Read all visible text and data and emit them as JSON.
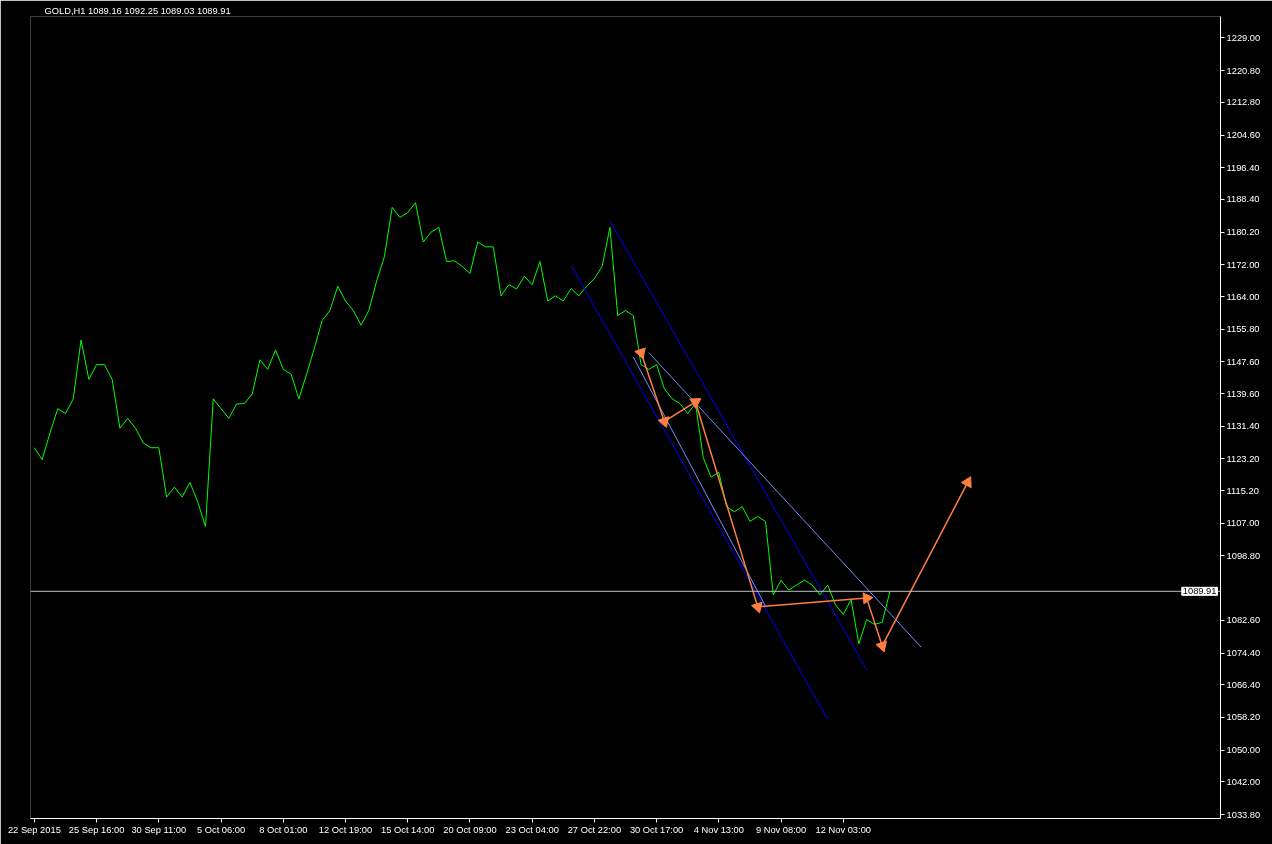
{
  "chart_data": {
    "type": "line",
    "title": "GOLD,H1  1089.16 1092.25 1089.03 1089.91",
    "categories": [
      "22 Sep 2015",
      null,
      null,
      null,
      null,
      null,
      null,
      null,
      "25 Sep 16:00",
      null,
      null,
      null,
      null,
      null,
      null,
      null,
      "30 Sep 11:00",
      null,
      null,
      null,
      null,
      null,
      null,
      null,
      "5 Oct 06:00",
      null,
      null,
      null,
      null,
      null,
      null,
      null,
      "8 Oct 01:00",
      null,
      null,
      null,
      null,
      null,
      null,
      null,
      "12 Oct 19:00",
      null,
      null,
      null,
      null,
      null,
      null,
      null,
      "15 Oct 14:00",
      null,
      null,
      null,
      null,
      null,
      null,
      null,
      "20 Oct 09:00",
      null,
      null,
      null,
      null,
      null,
      null,
      null,
      "23 Oct 04:00",
      null,
      null,
      null,
      null,
      null,
      null,
      null,
      "27 Oct 22:00",
      null,
      null,
      null,
      null,
      null,
      null,
      null,
      "30 Oct 17:00",
      null,
      null,
      null,
      null,
      null,
      null,
      null,
      "4 Nov 13:00",
      null,
      null,
      null,
      null,
      null,
      null,
      null,
      "9 Nov 08:00",
      null,
      null,
      null,
      null,
      null,
      null,
      null,
      "12 Nov 03:00",
      null,
      null,
      null,
      null,
      null,
      null,
      null,
      null,
      null,
      null,
      null,
      null,
      null,
      null,
      null,
      null,
      null,
      null,
      null,
      null,
      null,
      null,
      null,
      null,
      null,
      null,
      null,
      null,
      null,
      null,
      null,
      null,
      null,
      null,
      null,
      null,
      null,
      null,
      null,
      null,
      null,
      null,
      null,
      null,
      null,
      null,
      null,
      null
    ],
    "ylim": [
      1032.8,
      1234.4
    ],
    "yticks": [
      {
        "value": 1229,
        "label": "1229.00"
      },
      {
        "value": 1220.8,
        "label": "1220.80"
      },
      {
        "value": 1212.8,
        "label": "1212.80"
      },
      {
        "value": 1204.6,
        "label": "1204.60"
      },
      {
        "value": 1196.4,
        "label": "1196.40"
      },
      {
        "value": 1188.4,
        "label": "1188.40"
      },
      {
        "value": 1180.2,
        "label": "1180.20"
      },
      {
        "value": 1172,
        "label": "1172.00"
      },
      {
        "value": 1164,
        "label": "1164.00"
      },
      {
        "value": 1155.8,
        "label": "1155.80"
      },
      {
        "value": 1147.6,
        "label": "1147.60"
      },
      {
        "value": 1139.6,
        "label": "1139.60"
      },
      {
        "value": 1131.4,
        "label": "1131.40"
      },
      {
        "value": 1123.2,
        "label": "1123.20"
      },
      {
        "value": 1115.2,
        "label": "1115.20"
      },
      {
        "value": 1107,
        "label": "1107.00"
      },
      {
        "value": 1098.8,
        "label": "1098.80"
      },
      {
        "value": 1082.6,
        "label": "1082.60"
      },
      {
        "value": 1074.4,
        "label": "1074.40"
      },
      {
        "value": 1066.4,
        "label": "1066.40"
      },
      {
        "value": 1058.2,
        "label": "1058.20"
      },
      {
        "value": 1050,
        "label": "1050.00"
      },
      {
        "value": 1042,
        "label": "1042.00"
      },
      {
        "value": 1033.8,
        "label": "1033.80"
      }
    ],
    "grid": false,
    "ref_lines": [
      {
        "axis": "y",
        "value": 1089.91,
        "label": "1089.91",
        "color": "#c0c0c0"
      }
    ],
    "series": [
      {
        "color": "#00ff00",
        "values": [
          1126.0,
          1123.0,
          1129.7,
          1135.8,
          1134.6,
          1138.3,
          1153.1,
          1143.2,
          1146.9,
          1146.9,
          1143.2,
          1130.9,
          1133.4,
          1130.9,
          1127.2,
          1126.0,
          1126.0,
          1113.6,
          1116.1,
          1113.6,
          1117.3,
          1112.4,
          1106.2,
          1138.3,
          1135.8,
          1133.4,
          1137.0,
          1137.1,
          1139.5,
          1148.1,
          1145.7,
          1150.6,
          1145.7,
          1144.5,
          1138.3,
          1144.5,
          1151.0,
          1158.0,
          1160.5,
          1166.6,
          1162.9,
          1160.5,
          1156.8,
          1160.5,
          1167.9,
          1174.0,
          1186.4,
          1183.9,
          1185.1,
          1187.6,
          1177.7,
          1180.2,
          1181.4,
          1172.8,
          1173.0,
          1171.6,
          1169.8,
          1177.7,
          1176.5,
          1176.5,
          1164.2,
          1167.0,
          1165.9,
          1169.1,
          1167.0,
          1172.8,
          1162.9,
          1164.2,
          1162.9,
          1166.0,
          1164.2,
          1166.6,
          1168.5,
          1171.6,
          1181.4,
          1159.2,
          1160.5,
          1159.2,
          1146.9,
          1145.7,
          1146.9,
          1140.8,
          1138.3,
          1137.1,
          1134.6,
          1137.1,
          1123.5,
          1118.6,
          1119.8,
          1111.2,
          1109.9,
          1111.2,
          1107.5,
          1108.7,
          1107.5,
          1089.0,
          1092.7,
          1090.2,
          1091.5,
          1092.7,
          1091.5,
          1089.0,
          1091.5,
          1086.5,
          1084.1,
          1087.8,
          1076.7,
          1082.8,
          1081.6,
          1082.1,
          1089.9,
          null,
          null,
          null,
          null,
          null,
          null,
          null,
          null,
          null,
          null,
          null,
          null,
          null,
          null,
          null,
          null,
          null,
          null,
          null,
          null,
          null,
          null,
          null,
          null,
          null,
          null,
          null,
          null,
          null,
          null,
          null,
          null,
          null,
          null,
          null,
          null,
          null,
          null,
          null,
          null,
          null,
          null
        ]
      },
      {
        "color": "#0000ff",
        "values": [
          null,
          null,
          null,
          null,
          null,
          null,
          null,
          null,
          null,
          null,
          null,
          null,
          null,
          null,
          null,
          null,
          null,
          null,
          null,
          null,
          null,
          null,
          null,
          null,
          null,
          null,
          null,
          null,
          null,
          null,
          null,
          null,
          null,
          null,
          null,
          null,
          null,
          null,
          null,
          null,
          null,
          null,
          null,
          null,
          null,
          null,
          null,
          null,
          null,
          null,
          null,
          null,
          null,
          null,
          null,
          null,
          null,
          null,
          null,
          null,
          null,
          null,
          null,
          null,
          null,
          null,
          null,
          null,
          null,
          1171.9,
          null,
          null,
          null,
          null,
          null,
          null,
          null,
          null,
          null,
          null,
          null,
          null,
          null,
          null,
          null,
          null,
          null,
          null,
          null,
          null,
          null,
          null,
          null,
          null,
          null,
          null,
          null,
          null,
          null,
          null,
          null,
          null,
          1057.7,
          null,
          null,
          null,
          null,
          null,
          null,
          null,
          null,
          null,
          null,
          null,
          null,
          null,
          null,
          null,
          null,
          null,
          null,
          null,
          null,
          null,
          null,
          null,
          null,
          null,
          null,
          null,
          null,
          null,
          null,
          null,
          null,
          null,
          null,
          null,
          null,
          null,
          null,
          null,
          null,
          null,
          null,
          null,
          null,
          null,
          null,
          null,
          null,
          null,
          null
        ]
      },
      {
        "color": "#0000ff",
        "values": [
          null,
          null,
          null,
          null,
          null,
          null,
          null,
          null,
          null,
          null,
          null,
          null,
          null,
          null,
          null,
          null,
          null,
          null,
          null,
          null,
          null,
          null,
          null,
          null,
          null,
          null,
          null,
          null,
          null,
          null,
          null,
          null,
          null,
          null,
          null,
          null,
          null,
          null,
          null,
          null,
          null,
          null,
          null,
          null,
          null,
          null,
          null,
          null,
          null,
          null,
          null,
          null,
          null,
          null,
          null,
          null,
          null,
          null,
          null,
          null,
          null,
          null,
          null,
          null,
          null,
          null,
          null,
          null,
          null,
          null,
          null,
          null,
          null,
          null,
          1183.0,
          null,
          null,
          null,
          null,
          null,
          null,
          null,
          null,
          null,
          null,
          null,
          null,
          null,
          null,
          null,
          null,
          null,
          null,
          null,
          null,
          null,
          null,
          null,
          null,
          null,
          null,
          null,
          null,
          null,
          null,
          null,
          null,
          1070.2,
          null,
          null,
          null,
          null,
          null,
          null,
          null,
          null,
          null,
          null,
          null,
          null,
          null,
          null,
          null,
          null,
          null,
          null,
          null,
          null,
          null,
          null,
          null,
          null,
          null,
          null,
          null,
          null,
          null,
          null,
          null,
          null,
          null,
          null,
          null,
          null,
          null,
          null,
          null,
          null,
          null,
          null,
          null,
          null,
          null
        ]
      },
      {
        "color": "#6f8fff",
        "values": [
          null,
          null,
          null,
          null,
          null,
          null,
          null,
          null,
          null,
          null,
          null,
          null,
          null,
          null,
          null,
          null,
          null,
          null,
          null,
          null,
          null,
          null,
          null,
          null,
          null,
          null,
          null,
          null,
          null,
          null,
          null,
          null,
          null,
          null,
          null,
          null,
          null,
          null,
          null,
          null,
          null,
          null,
          null,
          null,
          null,
          null,
          null,
          null,
          null,
          null,
          null,
          null,
          null,
          null,
          null,
          null,
          null,
          null,
          null,
          null,
          null,
          null,
          null,
          null,
          null,
          null,
          null,
          null,
          null,
          null,
          null,
          null,
          null,
          null,
          null,
          null,
          null,
          null,
          null,
          1149.9,
          null,
          null,
          null,
          null,
          null,
          null,
          null,
          null,
          null,
          null,
          null,
          null,
          null,
          null,
          null,
          null,
          null,
          null,
          null,
          null,
          null,
          null,
          null,
          null,
          null,
          null,
          null,
          null,
          null,
          null,
          null,
          null,
          null,
          null,
          1075.9,
          null,
          null,
          null,
          null,
          null,
          null,
          null,
          null,
          null,
          null,
          null,
          null,
          null,
          null,
          null,
          null,
          null,
          null,
          null,
          null,
          null,
          null,
          null,
          null,
          null,
          null,
          null,
          null,
          null,
          null,
          null,
          null,
          null,
          null,
          null,
          null,
          null,
          null
        ]
      },
      {
        "color": "#6f8fff",
        "values": [
          null,
          null,
          null,
          null,
          null,
          null,
          null,
          null,
          null,
          null,
          null,
          null,
          null,
          null,
          null,
          null,
          null,
          null,
          null,
          null,
          null,
          null,
          null,
          null,
          null,
          null,
          null,
          null,
          null,
          null,
          null,
          null,
          null,
          null,
          null,
          null,
          null,
          null,
          null,
          null,
          null,
          null,
          null,
          null,
          null,
          null,
          null,
          null,
          null,
          null,
          null,
          null,
          null,
          null,
          null,
          null,
          null,
          null,
          null,
          null,
          null,
          null,
          null,
          null,
          null,
          null,
          null,
          null,
          null,
          null,
          null,
          null,
          null,
          null,
          null,
          null,
          null,
          1148.8,
          null,
          null,
          null,
          null,
          null,
          null,
          null,
          null,
          null,
          null,
          null,
          null,
          null,
          null,
          null,
          null,
          1086.2,
          null,
          null,
          null,
          null,
          null,
          null,
          null,
          null,
          null,
          null,
          null,
          null,
          null,
          null,
          null,
          null,
          null,
          null,
          null,
          null,
          null,
          null,
          null,
          null,
          null,
          null,
          null,
          null,
          null,
          null,
          null,
          null,
          null,
          null,
          null,
          null,
          null,
          null,
          null,
          null,
          null,
          null,
          null,
          null,
          null,
          null,
          null,
          null,
          null,
          null,
          null,
          null,
          null,
          null,
          null,
          null,
          null,
          null
        ]
      },
      {
        "color": "#ff7f40",
        "marker": "triangle",
        "values": [
          null,
          null,
          null,
          null,
          null,
          null,
          null,
          null,
          null,
          null,
          null,
          null,
          null,
          null,
          null,
          null,
          null,
          null,
          null,
          null,
          null,
          null,
          null,
          null,
          null,
          null,
          null,
          null,
          null,
          null,
          null,
          null,
          null,
          null,
          null,
          null,
          null,
          null,
          null,
          null,
          null,
          null,
          null,
          null,
          null,
          null,
          null,
          null,
          null,
          null,
          null,
          null,
          null,
          null,
          null,
          null,
          null,
          null,
          null,
          null,
          null,
          null,
          null,
          null,
          null,
          null,
          null,
          null,
          null,
          null,
          null,
          null,
          null,
          null,
          null,
          null,
          null,
          null,
          1149.9,
          null,
          null,
          1132.6,
          null,
          null,
          null,
          1137.5,
          null,
          null,
          null,
          null,
          null,
          null,
          null,
          1086.0,
          null,
          null,
          null,
          null,
          null,
          null,
          null,
          null,
          null,
          null,
          null,
          null,
          null,
          1088.2,
          null,
          1076.2,
          null,
          null,
          null,
          null,
          null,
          null,
          null,
          null,
          null,
          null,
          1117.3,
          null,
          null,
          null,
          null,
          null,
          null,
          null,
          null,
          null,
          null,
          null,
          null,
          null,
          null,
          null,
          null,
          null,
          null,
          null,
          null,
          null,
          null,
          null,
          null,
          null,
          null,
          null,
          null,
          null,
          null,
          null,
          null
        ]
      }
    ]
  }
}
